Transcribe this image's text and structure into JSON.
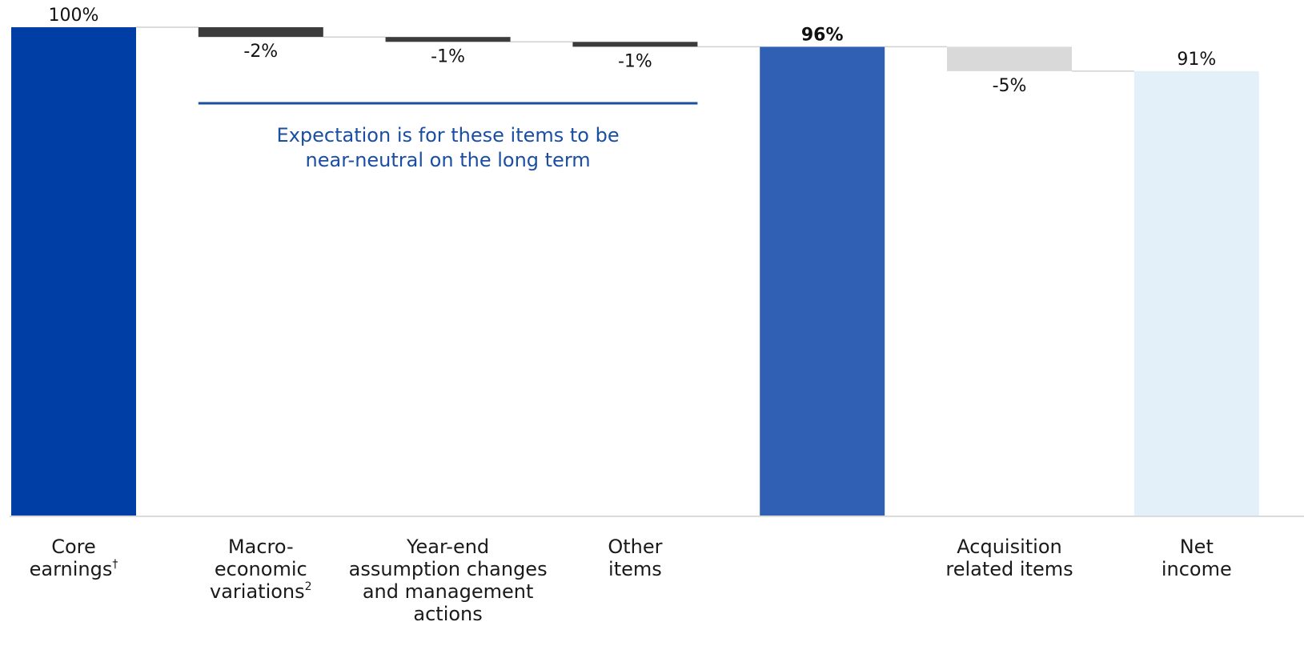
{
  "chart_data": {
    "type": "bar",
    "subtype": "waterfall",
    "ylim": [
      0,
      100
    ],
    "grid": false,
    "bars": [
      {
        "key": "core",
        "kind": "total",
        "start": 0,
        "end": 100,
        "value_label": "100%",
        "label_lines": [
          "Core",
          "earnings"
        ],
        "label_sup": "†",
        "color": "#003da5",
        "bold": false
      },
      {
        "key": "macro",
        "kind": "delta",
        "start": 100,
        "end": 98,
        "value_label": "-2%",
        "label_lines": [
          "Macro-",
          "economic",
          "variations"
        ],
        "label_sup": "2",
        "color": "#3c3c3c",
        "bold": false
      },
      {
        "key": "yearend",
        "kind": "delta",
        "start": 98,
        "end": 97,
        "value_label": "-1%",
        "label_lines": [
          "Year-end",
          "assumption changes",
          "and management",
          "actions"
        ],
        "label_sup": "",
        "color": "#3c3c3c",
        "bold": false
      },
      {
        "key": "other",
        "kind": "delta",
        "start": 97,
        "end": 96,
        "value_label": "-1%",
        "label_lines": [
          "Other",
          "items"
        ],
        "label_sup": "",
        "color": "#3c3c3c",
        "bold": false
      },
      {
        "key": "subtotal",
        "kind": "total",
        "start": 0,
        "end": 96,
        "value_label": "96%",
        "label_lines": [],
        "label_sup": "",
        "color": "#2f60b3",
        "bold": true
      },
      {
        "key": "acq",
        "kind": "delta",
        "start": 96,
        "end": 91,
        "value_label": "-5%",
        "label_lines": [
          "Acquisition",
          "related items"
        ],
        "label_sup": "",
        "color": "#d9d9d9",
        "bold": false
      },
      {
        "key": "net",
        "kind": "total",
        "start": 0,
        "end": 91,
        "value_label": "91%",
        "label_lines": [
          "Net",
          "income"
        ],
        "label_sup": "",
        "color": "#e3f0fa",
        "bold": false
      }
    ],
    "annotation": {
      "lines": [
        "Expectation is for these items to be",
        "near-neutral on the long term"
      ],
      "color": "#1a4ea3",
      "spans": [
        "macro",
        "other"
      ]
    }
  }
}
